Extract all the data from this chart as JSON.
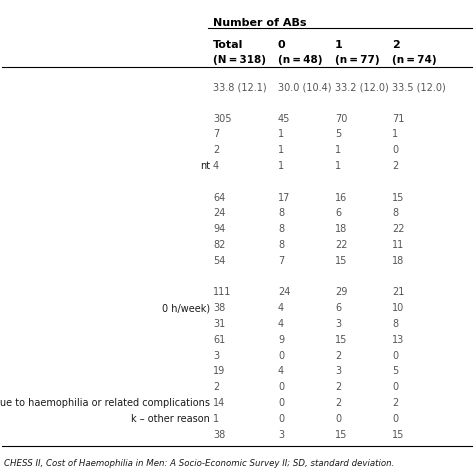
{
  "header_top": "Number of ABs",
  "col_headers_line1": [
    "Total",
    "0",
    "1",
    "2"
  ],
  "col_headers_line2": [
    "(N = 318)",
    "(n = 48)",
    "(n = 77)",
    "(n = 74)"
  ],
  "rows": [
    [
      "33.8 (12.1)",
      "30.0 (10.4)",
      "33.2 (12.0)",
      "33.5 (12.0)"
    ],
    [
      "",
      "",
      "",
      ""
    ],
    [
      "305",
      "45",
      "70",
      "71"
    ],
    [
      "7",
      "1",
      "5",
      "1"
    ],
    [
      "2",
      "1",
      "1",
      "0"
    ],
    [
      "4",
      "1",
      "1",
      "2"
    ],
    [
      "",
      "",
      "",
      ""
    ],
    [
      "64",
      "17",
      "16",
      "15"
    ],
    [
      "24",
      "8",
      "6",
      "8"
    ],
    [
      "94",
      "8",
      "18",
      "22"
    ],
    [
      "82",
      "8",
      "22",
      "11"
    ],
    [
      "54",
      "7",
      "15",
      "18"
    ],
    [
      "",
      "",
      "",
      ""
    ],
    [
      "111",
      "24",
      "29",
      "21"
    ],
    [
      "38",
      "4",
      "6",
      "10"
    ],
    [
      "31",
      "4",
      "3",
      "8"
    ],
    [
      "61",
      "9",
      "15",
      "13"
    ],
    [
      "3",
      "0",
      "2",
      "0"
    ],
    [
      "19",
      "4",
      "3",
      "5"
    ],
    [
      "2",
      "0",
      "2",
      "0"
    ],
    [
      "14",
      "0",
      "2",
      "2"
    ],
    [
      "1",
      "0",
      "0",
      "0"
    ],
    [
      "38",
      "3",
      "15",
      "15"
    ]
  ],
  "left_labels": [
    "",
    "",
    "",
    "",
    "",
    "nt",
    "",
    "",
    "",
    "",
    "",
    "",
    "",
    "",
    "0 h/week)",
    "",
    "",
    "",
    "",
    "",
    "k due to haemophilia or related complications",
    "k – other reason",
    ""
  ],
  "footnote": "CHESS II, Cost of Haemophilia in Men: A Socio-Economic Survey II; SD, standard deviation.",
  "background_color": "#ffffff",
  "text_color": "#1a1a1a",
  "header_bold_color": "#000000",
  "data_color": "#555555",
  "line_color": "#000000",
  "body_font_size": 7.0,
  "header_font_size": 8.0,
  "footnote_font_size": 6.2
}
